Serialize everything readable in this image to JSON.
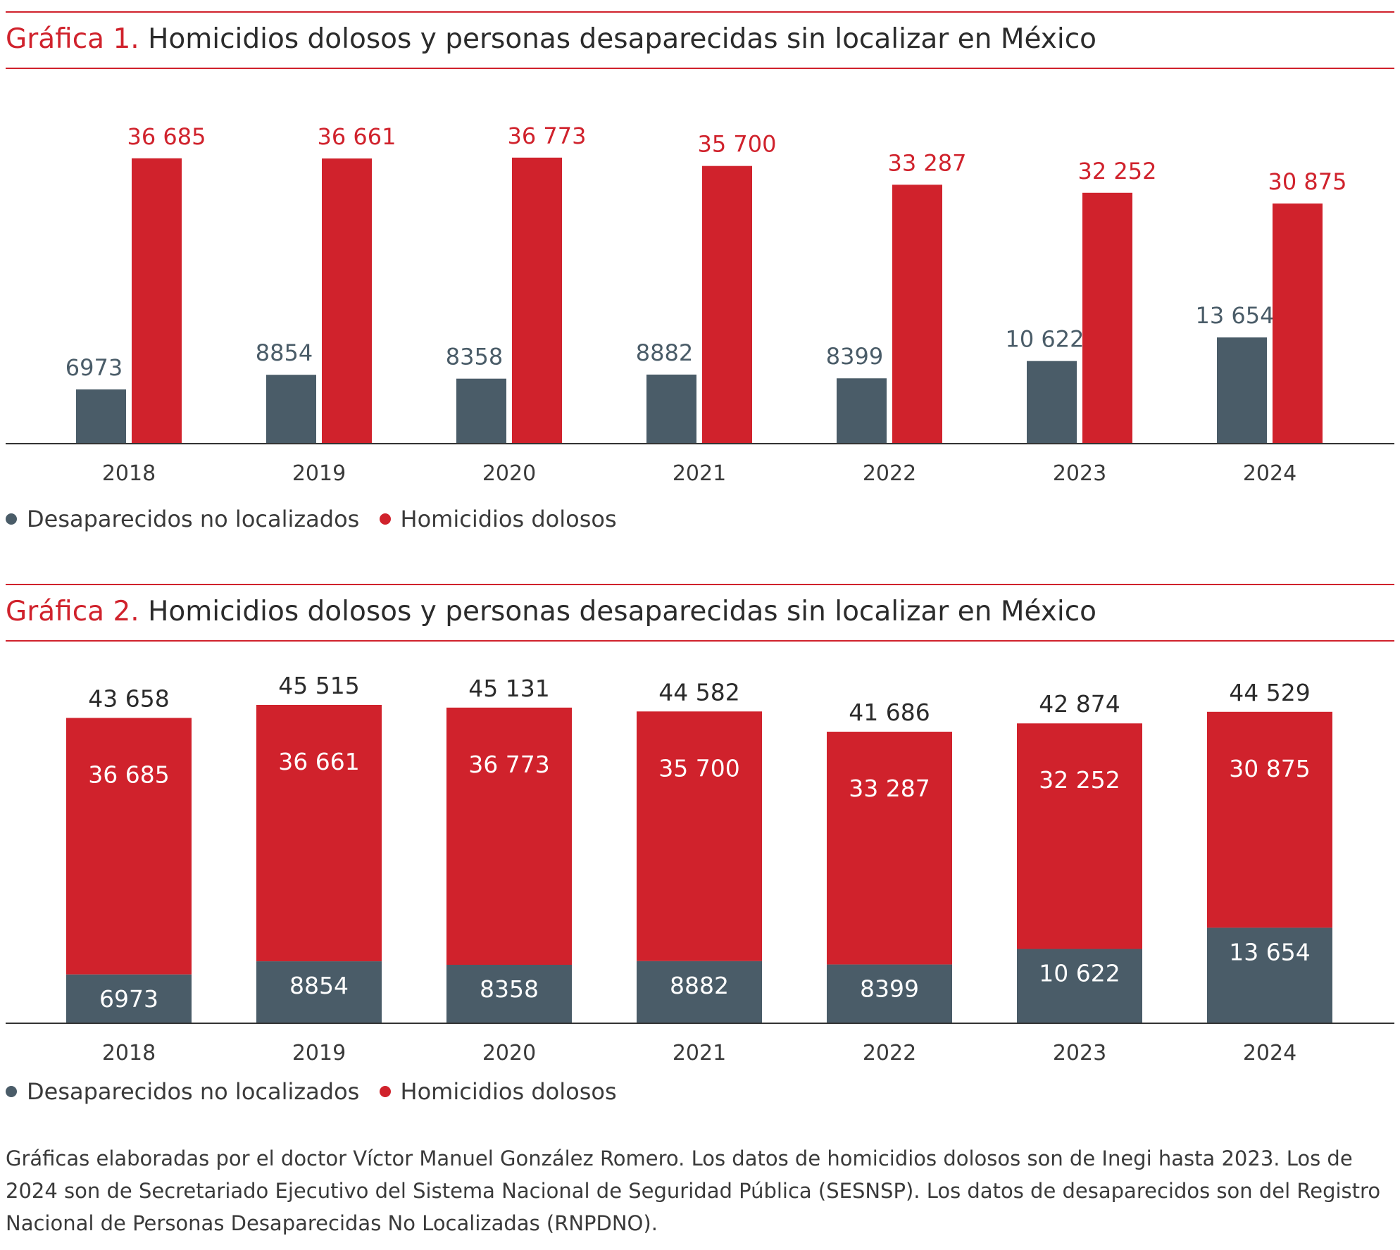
{
  "colors": {
    "accent": "#d0222c",
    "desaparecidos": "#4a5c68",
    "homicidios": "#d0222c",
    "text": "#2b2b2b"
  },
  "charts": [
    {
      "number_label": "Gráfica 1.",
      "title": "Homicidios dolosos y personas desaparecidas sin localizar en México"
    },
    {
      "number_label": "Gráfica 2.",
      "title": "Homicidios dolosos y personas desaparecidas sin localizar en México"
    }
  ],
  "legend": [
    {
      "label": "Desaparecidos no localizados",
      "color": "#4a5c68"
    },
    {
      "label": "Homicidios dolosos",
      "color": "#d0222c"
    }
  ],
  "chart_data": [
    {
      "type": "bar",
      "layout": "grouped",
      "title": "Gráfica 1. Homicidios dolosos y personas desaparecidas sin localizar en México",
      "categories": [
        "2018",
        "2019",
        "2020",
        "2021",
        "2022",
        "2023",
        "2024"
      ],
      "series": [
        {
          "name": "Desaparecidos no localizados",
          "color": "#4a5c68",
          "values": [
            6973,
            8854,
            8358,
            8882,
            8399,
            10622,
            13654
          ],
          "labels": [
            "6973",
            "8854",
            "8358",
            "8882",
            "8399",
            "10 622",
            "13 654"
          ]
        },
        {
          "name": "Homicidios dolosos",
          "color": "#d0222c",
          "values": [
            36685,
            36661,
            36773,
            35700,
            33287,
            32252,
            30875
          ],
          "labels": [
            "36 685",
            "36 661",
            "36 773",
            "35 700",
            "33 287",
            "32 252",
            "30 875"
          ]
        }
      ],
      "xlabel": "",
      "ylabel": "",
      "ylim": [
        0,
        44000
      ],
      "grid": false,
      "legend_position": "bottom-left"
    },
    {
      "type": "bar",
      "layout": "stacked",
      "title": "Gráfica 2. Homicidios dolosos y personas desaparecidas sin localizar en México",
      "categories": [
        "2018",
        "2019",
        "2020",
        "2021",
        "2022",
        "2023",
        "2024"
      ],
      "series": [
        {
          "name": "Desaparecidos no localizados",
          "color": "#4a5c68",
          "values": [
            6973,
            8854,
            8358,
            8882,
            8399,
            10622,
            13654
          ],
          "labels": [
            "6973",
            "8854",
            "8358",
            "8882",
            "8399",
            "10 622",
            "13 654"
          ]
        },
        {
          "name": "Homicidios dolosos",
          "color": "#d0222c",
          "values": [
            36685,
            36661,
            36773,
            35700,
            33287,
            32252,
            30875
          ],
          "labels": [
            "36 685",
            "36 661",
            "36 773",
            "35 700",
            "33 287",
            "32 252",
            "30 875"
          ]
        }
      ],
      "totals": [
        43658,
        45515,
        45131,
        44582,
        41686,
        42874,
        44529
      ],
      "total_labels": [
        "43 658",
        "45 515",
        "45 131",
        "44 582",
        "41 686",
        "42 874",
        "44 529"
      ],
      "xlabel": "",
      "ylabel": "",
      "ylim": [
        0,
        45515
      ],
      "grid": false,
      "legend_position": "bottom-left"
    }
  ],
  "source_note": "Gráficas elaboradas por el doctor Víctor Manuel González Romero. Los datos de homicidios dolosos son de Inegi hasta 2023. Los de 2024 son de Secretariado Ejecutivo del Sistema Nacional de Seguridad Pública (SESNSP). Los datos de desaparecidos son del Registro Nacional de Personas Desaparecidas No Localizadas (RNPDNO)."
}
